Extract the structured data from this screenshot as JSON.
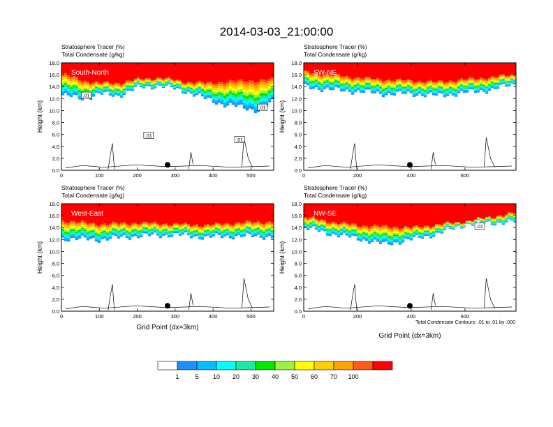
{
  "figure": {
    "title": "2014-03-03_21:00:00",
    "contour_note": "Total Condensate Contours: .01 to .01 by .000"
  },
  "colorbar": {
    "colors": [
      "#ffffff",
      "#1e90ff",
      "#00bfff",
      "#00ffff",
      "#20e8a0",
      "#00e800",
      "#a0f040",
      "#ffff00",
      "#ffd000",
      "#ffa500",
      "#ff5a1e",
      "#ff0000"
    ],
    "labels": [
      "1",
      "5",
      "10",
      "20",
      "30",
      "40",
      "50",
      "60",
      "70",
      "100"
    ]
  },
  "chart_data": [
    {
      "type": "heatmap",
      "panel": "South-North",
      "label": "South-North",
      "header_line1": "Stratosphere Tracer   (%)",
      "header_line2": "Total Condensate   (g/kg)",
      "ylabel": "Height (km)",
      "xlabel": "",
      "ylim": [
        0,
        18
      ],
      "yticks": [
        "0.0",
        "2.0",
        "4.0",
        "6.0",
        "8.0",
        "10.0",
        "12.0",
        "14.0",
        "16.0",
        "18.0"
      ],
      "xlim": [
        0,
        560
      ],
      "xticks": [
        0,
        100,
        200,
        300,
        400,
        500
      ],
      "marker_x": 280,
      "contour_labels": [
        {
          "text": ".01",
          "x": 65,
          "y": 12.5
        },
        {
          "text": ".01",
          "x": 230,
          "y": 5.8
        },
        {
          "text": ".01",
          "x": 470,
          "y": 5.1
        },
        {
          "text": ".01",
          "x": 530,
          "y": 10.5
        }
      ],
      "profile": [
        [
          0,
          16.2,
          12.6
        ],
        [
          60,
          15.0,
          12.0
        ],
        [
          100,
          14.6,
          12.8
        ],
        [
          150,
          14.6,
          12.5
        ],
        [
          200,
          15.2,
          13.8
        ],
        [
          260,
          15.5,
          14.2
        ],
        [
          330,
          14.8,
          13.2
        ],
        [
          380,
          14.6,
          12.0
        ],
        [
          430,
          14.8,
          11.0
        ],
        [
          480,
          15.0,
          10.5
        ],
        [
          520,
          15.0,
          10.0
        ],
        [
          560,
          15.2,
          11.5
        ]
      ]
    },
    {
      "type": "heatmap",
      "panel": "SW-NE",
      "label": "SW-NE",
      "header_line1": "Stratosphere Tracer   (%)",
      "header_line2": "Total Condensate   (g/kg)",
      "ylabel": "Height (km)",
      "xlabel": "",
      "ylim": [
        0,
        18
      ],
      "yticks": [
        "0.0",
        "2.0",
        "4.0",
        "6.0",
        "8.0",
        "10.0",
        "12.0",
        "14.0",
        "16.0",
        "18.0"
      ],
      "xlim": [
        0,
        790
      ],
      "xticks": [
        0,
        200,
        400,
        600
      ],
      "marker_x": 395,
      "contour_labels": [],
      "profile": [
        [
          0,
          16.5,
          14.0
        ],
        [
          100,
          16.0,
          13.5
        ],
        [
          200,
          15.5,
          13.2
        ],
        [
          300,
          15.2,
          12.8
        ],
        [
          400,
          15.0,
          12.8
        ],
        [
          500,
          14.8,
          12.5
        ],
        [
          600,
          15.2,
          13.0
        ],
        [
          700,
          15.6,
          13.5
        ],
        [
          790,
          16.0,
          14.5
        ]
      ]
    },
    {
      "type": "heatmap",
      "panel": "West-East",
      "label": "West-East",
      "header_line1": "Stratosphere Tracer   (%)",
      "header_line2": "Total Condensate   (g/kg)",
      "ylabel": "Height (km)",
      "xlabel": "Grid Point (dx=3km)",
      "ylim": [
        0,
        18
      ],
      "yticks": [
        "0.0",
        "2.0",
        "4.0",
        "6.0",
        "8.0",
        "10.0",
        "12.0",
        "14.0",
        "16.0",
        "18.0"
      ],
      "xlim": [
        0,
        560
      ],
      "xticks": [
        0,
        100,
        200,
        300,
        400,
        500
      ],
      "marker_x": 280,
      "contour_labels": [],
      "profile": [
        [
          0,
          15.2,
          12.2
        ],
        [
          100,
          14.6,
          12.0
        ],
        [
          200,
          14.8,
          12.6
        ],
        [
          300,
          14.6,
          12.8
        ],
        [
          380,
          14.4,
          12.4
        ],
        [
          460,
          14.8,
          12.6
        ],
        [
          560,
          15.0,
          12.5
        ]
      ]
    },
    {
      "type": "heatmap",
      "panel": "NW-SE",
      "label": "NW-SE",
      "header_line1": "Stratosphere Tracer   (%)",
      "header_line2": "Total Condensate   (g/kg)",
      "ylabel": "Height (km)",
      "xlabel": "Grid Point (dx=3km)",
      "ylim": [
        0,
        18
      ],
      "yticks": [
        "0.0",
        "2.0",
        "4.0",
        "6.0",
        "8.0",
        "10.0",
        "12.0",
        "14.0",
        "16.0",
        "18.0"
      ],
      "xlim": [
        0,
        790
      ],
      "xticks": [
        0,
        200,
        400,
        600
      ],
      "marker_x": 395,
      "contour_labels": [
        {
          "text": ".01",
          "x": 655,
          "y": 14.2
        }
      ],
      "profile": [
        [
          0,
          15.8,
          14.0
        ],
        [
          100,
          15.0,
          13.0
        ],
        [
          200,
          14.4,
          12.2
        ],
        [
          300,
          14.2,
          11.2
        ],
        [
          400,
          14.0,
          12.0
        ],
        [
          500,
          14.5,
          13.0
        ],
        [
          600,
          15.0,
          14.5
        ],
        [
          700,
          15.8,
          14.8
        ],
        [
          790,
          16.5,
          15.0
        ]
      ]
    }
  ]
}
